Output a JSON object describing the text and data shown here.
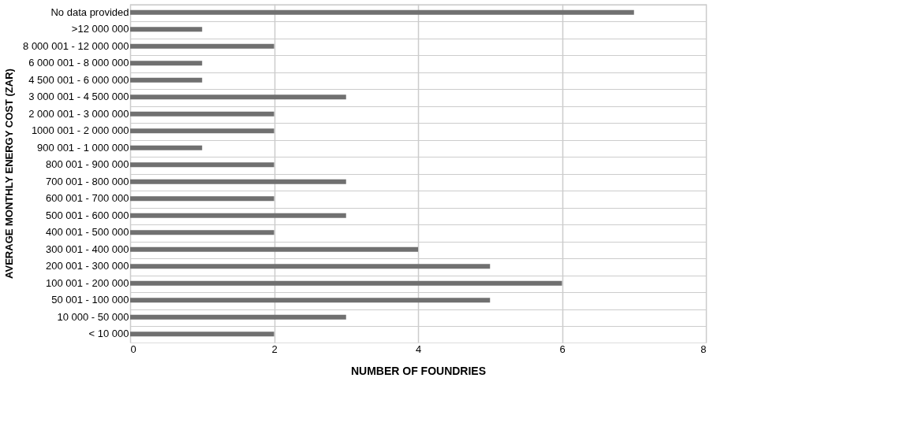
{
  "chart_data": {
    "type": "bar",
    "orientation": "horizontal",
    "xlabel": "NUMBER OF FOUNDRIES",
    "ylabel": "AVERAGE MONTHLY ENERGY COST (ZAR)",
    "categories": [
      "No data provided",
      ">12 000 000",
      "8 000 001 - 12 000 000",
      "6 000 001 - 8 000 000",
      "4 500 001 - 6 000 000",
      "3 000 001 - 4 500 000",
      "2 000 001 - 3 000 000",
      "1000 001 - 2 000 000",
      "900 001 - 1 000 000",
      "800 001 - 900 000",
      "700 001 - 800 000",
      "600 001 - 700 000",
      "500 001 - 600 000",
      "400 001 - 500 000",
      "300 001 - 400 000",
      "200 001 - 300 000",
      "100 001 - 200 000",
      "50 001 - 100 000",
      "10 000 - 50 000",
      "< 10 000"
    ],
    "values": [
      7,
      1,
      2,
      1,
      1,
      3,
      2,
      2,
      1,
      2,
      3,
      2,
      3,
      2,
      4,
      5,
      6,
      5,
      3,
      2
    ],
    "color": "#707070",
    "xlim": [
      0,
      8
    ],
    "xticks": [
      0,
      2,
      4,
      6,
      8
    ],
    "grid": true
  }
}
